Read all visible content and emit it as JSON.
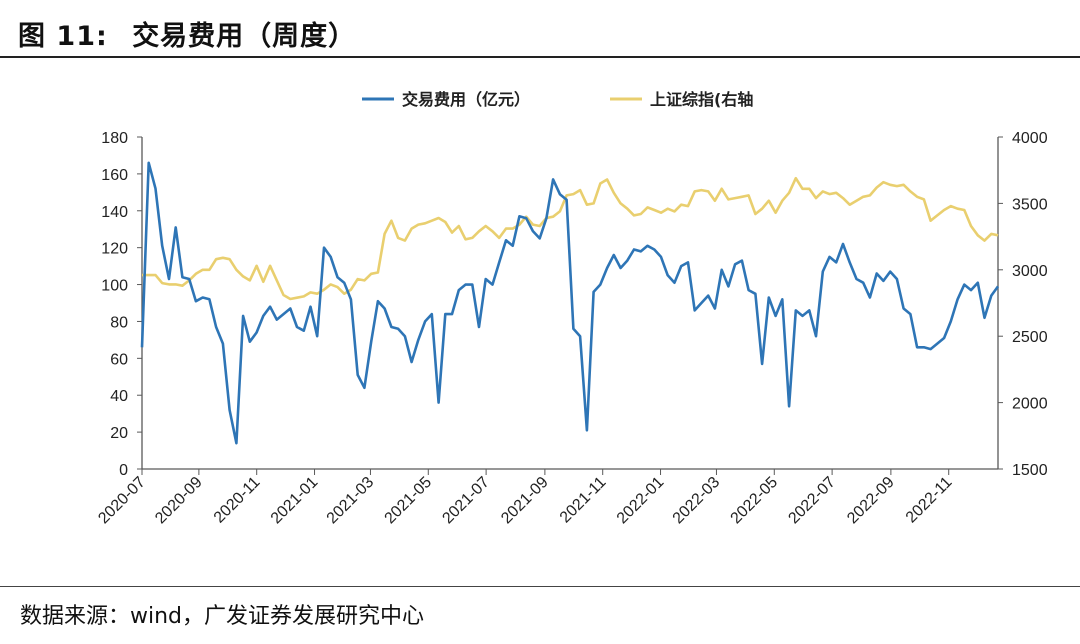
{
  "figure": {
    "label": "图",
    "number": "11:",
    "title": "交易费用（周度）",
    "source": "数据来源：wind，广发证券发展研究中心"
  },
  "colors": {
    "fee": "#2E75B6",
    "index": "#E9CF6F",
    "axis": "#595959"
  },
  "chart_data": {
    "type": "line",
    "x_tick_labels": [
      "2020-07",
      "2020-09",
      "2020-11",
      "2021-01",
      "2021-03",
      "2021-05",
      "2021-07",
      "2021-09",
      "2021-11",
      "2022-01",
      "2022-03",
      "2022-05",
      "2022-07",
      "2022-09",
      "2022-11"
    ],
    "x_range": [
      "2020-07-03",
      "2022-12-23"
    ],
    "y_left": {
      "range": [
        0,
        180
      ],
      "ticks": [
        0,
        20,
        40,
        60,
        80,
        100,
        120,
        140,
        160,
        180
      ]
    },
    "y_right": {
      "range": [
        1500,
        4000
      ],
      "ticks": [
        1500,
        2000,
        2500,
        3000,
        3500,
        4000
      ]
    },
    "legend_position": "top-center",
    "grid": false,
    "series": [
      {
        "name": "交易费用（亿元）",
        "axis": "left",
        "color": "#2E75B6",
        "values": [
          66,
          166,
          152,
          121,
          103,
          131,
          104,
          103,
          91,
          93,
          92,
          77,
          68,
          32,
          14,
          83,
          69,
          74,
          83,
          88,
          81,
          84,
          87,
          77,
          75,
          88,
          72,
          120,
          115,
          104,
          101,
          92,
          51,
          44,
          69,
          91,
          87,
          77,
          76,
          72,
          58,
          70,
          80,
          84,
          36,
          84,
          84,
          97,
          100,
          100,
          77,
          103,
          100,
          112,
          124,
          121,
          137,
          136,
          129,
          125,
          136,
          157,
          149,
          146,
          76,
          72,
          21,
          96,
          100,
          109,
          116,
          109,
          113,
          119,
          118,
          121,
          119,
          115,
          105,
          101,
          110,
          112,
          86,
          90,
          94,
          87,
          108,
          99,
          111,
          113,
          97,
          95,
          57,
          93,
          83,
          92,
          34,
          86,
          83,
          86,
          72,
          107,
          115,
          112,
          122,
          112,
          103,
          101,
          93,
          106,
          102,
          107,
          103,
          87,
          84,
          66,
          66,
          65,
          68,
          71,
          80,
          92,
          100,
          97,
          101,
          82,
          94,
          99
        ],
        "line_width": 2.6
      },
      {
        "name": "上证综指(右轴",
        "axis": "right",
        "color": "#E9CF6F",
        "values": [
          2960,
          2960,
          2960,
          2900,
          2890,
          2890,
          2880,
          2920,
          2970,
          3000,
          3000,
          3080,
          3090,
          3080,
          3000,
          2950,
          2920,
          3030,
          2910,
          3030,
          2920,
          2810,
          2780,
          2790,
          2800,
          2830,
          2820,
          2850,
          2890,
          2870,
          2820,
          2850,
          2930,
          2920,
          2970,
          2980,
          3270,
          3370,
          3240,
          3220,
          3310,
          3340,
          3350,
          3370,
          3390,
          3360,
          3280,
          3330,
          3230,
          3240,
          3290,
          3330,
          3290,
          3240,
          3310,
          3310,
          3340,
          3400,
          3340,
          3330,
          3390,
          3400,
          3440,
          3560,
          3570,
          3600,
          3490,
          3500,
          3650,
          3680,
          3580,
          3500,
          3460,
          3410,
          3420,
          3470,
          3450,
          3430,
          3460,
          3440,
          3490,
          3480,
          3590,
          3600,
          3590,
          3520,
          3610,
          3530,
          3540,
          3550,
          3560,
          3420,
          3460,
          3520,
          3430,
          3520,
          3580,
          3690,
          3610,
          3610,
          3540,
          3590,
          3570,
          3580,
          3540,
          3490,
          3520,
          3550,
          3560,
          3620,
          3660,
          3640,
          3630,
          3640,
          3590,
          3550,
          3530,
          3370,
          3410,
          3450,
          3480,
          3460,
          3450,
          3330,
          3260,
          3220,
          3270,
          3260
        ],
        "line_width": 2.6
      }
    ]
  }
}
